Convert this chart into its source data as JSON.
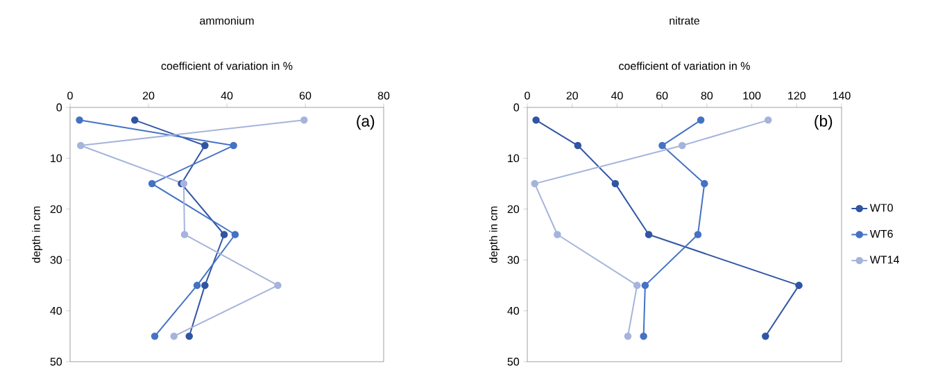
{
  "chart_data": [
    {
      "type": "line",
      "title": "ammonium",
      "xlabel": "coefficient of variation in %",
      "ylabel": "depth in cm",
      "marker": "circle",
      "legend": false,
      "xlim": [
        0,
        80
      ],
      "xticks": [
        0,
        20,
        40,
        60,
        80
      ],
      "ylim": [
        50,
        0
      ],
      "yticks": [
        0,
        10,
        20,
        30,
        40,
        50
      ],
      "annotations": [
        "(a)"
      ],
      "series": [
        {
          "color": "#2f55a4",
          "x": [
            16.5,
            34.4,
            28.4,
            39.3,
            34.4,
            30.4
          ],
          "values": [
            2.5,
            7.5,
            15,
            25,
            35,
            45
          ]
        },
        {
          "color": "#4472c4",
          "x": [
            2.4,
            41.7,
            20.9,
            42.1,
            32.4,
            21.6
          ],
          "values": [
            2.5,
            7.5,
            15,
            25,
            35,
            45
          ]
        },
        {
          "color": "#a5b4dc",
          "x": [
            59.7,
            2.7,
            29.0,
            29.2,
            53.0,
            26.5
          ],
          "values": [
            2.5,
            7.5,
            15,
            25,
            35,
            45
          ]
        }
      ]
    },
    {
      "type": "line",
      "title": "nitrate",
      "xlabel": "coefficient of variation in %",
      "ylabel": "depth in cm",
      "marker": "circle",
      "legend": "right",
      "xlim": [
        0,
        140
      ],
      "xticks": [
        0,
        20,
        40,
        60,
        80,
        100,
        120,
        140
      ],
      "ylim": [
        50,
        0
      ],
      "yticks": [
        0,
        10,
        20,
        30,
        40,
        50
      ],
      "annotations": [
        "(b)"
      ],
      "series": [
        {
          "name": "WT0",
          "color": "#2f55a4",
          "x": [
            3.9,
            22.5,
            39.2,
            54.1,
            121.0,
            106.1
          ],
          "values": [
            2.5,
            7.5,
            15,
            25,
            35,
            45
          ]
        },
        {
          "name": "WT6",
          "color": "#4472c4",
          "x": [
            77.3,
            60.1,
            78.9,
            76.0,
            52.5,
            51.8
          ],
          "values": [
            2.5,
            7.5,
            15,
            25,
            35,
            45
          ]
        },
        {
          "name": "WT14",
          "color": "#a5b4dc",
          "x": [
            107.3,
            69.0,
            3.3,
            13.4,
            48.9,
            44.8
          ],
          "values": [
            2.5,
            7.5,
            15,
            25,
            35,
            45
          ]
        }
      ]
    }
  ]
}
